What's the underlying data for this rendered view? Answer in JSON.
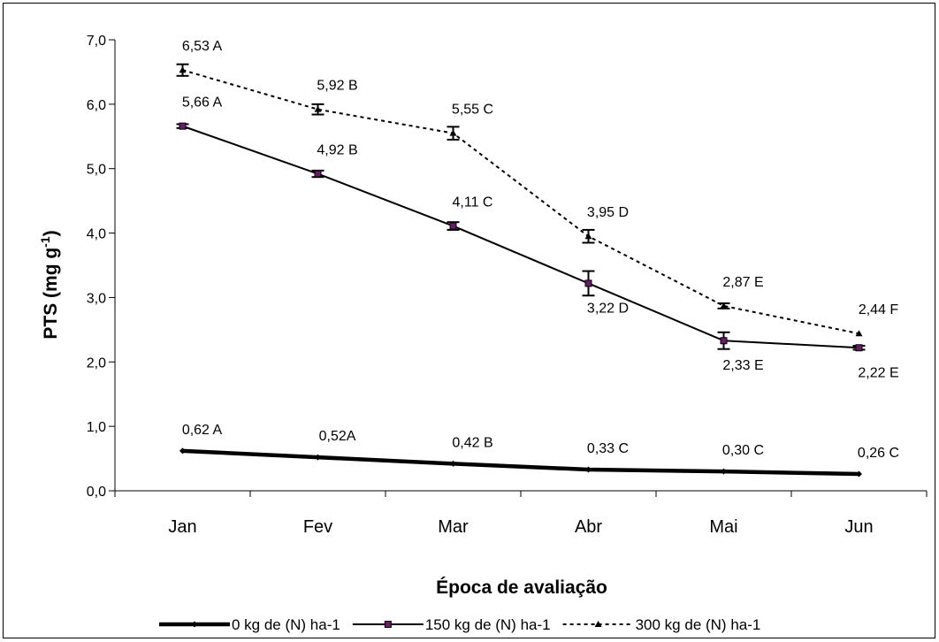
{
  "chart_data": {
    "type": "line",
    "xlabel": "Época de avaliação",
    "ylabel_main": "PTS (mg g",
    "ylabel_sup": "-1",
    "ylabel_close": ")",
    "ylim": [
      0,
      7
    ],
    "yticks": [
      "0,0",
      "1,0",
      "2,0",
      "3,0",
      "4,0",
      "5,0",
      "6,0",
      "7,0"
    ],
    "categories": [
      "Jan",
      "Fev",
      "Mar",
      "Abr",
      "Mai",
      "Jun"
    ],
    "grid": false,
    "legend_position": "bottom",
    "series": [
      {
        "name": "0 kg de (N) ha-1",
        "values": [
          0.62,
          0.52,
          0.42,
          0.33,
          0.3,
          0.26
        ],
        "labels": [
          "0,62 A",
          "0,52A",
          "0,42 B",
          "0,33 C",
          "0,30 C",
          "0,26 C"
        ],
        "line_style": "solid-thick",
        "marker": "diamond"
      },
      {
        "name": "150 kg de (N) ha-1",
        "values": [
          5.66,
          4.92,
          4.11,
          3.22,
          2.33,
          2.22
        ],
        "errors": [
          0.03,
          0.05,
          0.06,
          0.19,
          0.13,
          0.03
        ],
        "labels": [
          "5,66 A",
          "4,92 B",
          "4,11 C",
          "3,22 D",
          "2,33 E",
          "2,22 E"
        ],
        "label_position": [
          "above",
          "above",
          "above",
          "below",
          "below",
          "below"
        ],
        "line_style": "solid",
        "marker": "square",
        "marker_color": "#6a1b6a"
      },
      {
        "name": "300 kg de (N) ha-1",
        "values": [
          6.53,
          5.92,
          5.55,
          3.95,
          2.87,
          2.44
        ],
        "errors": [
          0.09,
          0.08,
          0.1,
          0.1,
          0.04,
          0.0
        ],
        "labels": [
          "6,53 A",
          "5,92 B",
          "5,55 C",
          "3,95 D",
          "2,87 E",
          "2,44 F"
        ],
        "line_style": "dashed",
        "marker": "triangle"
      }
    ]
  }
}
